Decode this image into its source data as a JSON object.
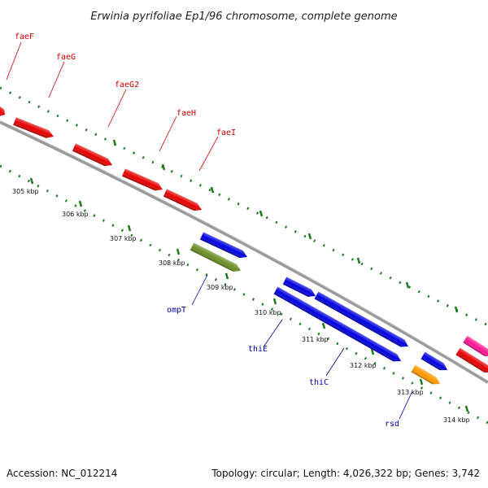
{
  "title": "Erwinia pyrifoliae Ep1/96 chromosome, complete genome",
  "footer": {
    "accession": "Accession: NC_012214",
    "summary": "Topology: circular; Length: 4,026,322 bp; Genes: 3,742"
  },
  "colors": {
    "backbone": "#8a8a8a",
    "tick": "#1f7a1f",
    "label_forward": "#cc0000",
    "label_reverse": "#0000aa"
  },
  "ticks": [
    {
      "label": "305 kbp",
      "kbp": 305
    },
    {
      "label": "306 kbp",
      "kbp": 306
    },
    {
      "label": "307 kbp",
      "kbp": 307
    },
    {
      "label": "308 kbp",
      "kbp": 308
    },
    {
      "label": "309 kbp",
      "kbp": 309
    },
    {
      "label": "310 kbp",
      "kbp": 310
    },
    {
      "label": "311 kbp",
      "kbp": 311
    },
    {
      "label": "312 kbp",
      "kbp": 312
    },
    {
      "label": "313 kbp",
      "kbp": 313
    },
    {
      "label": "314 kbp",
      "kbp": 314
    }
  ],
  "features": [
    {
      "name": "faeF",
      "label": "faeF",
      "color": "#e60000",
      "strand": "forward"
    },
    {
      "name": "faeG",
      "label": "faeG",
      "color": "#e60000",
      "strand": "forward"
    },
    {
      "name": "faeG2",
      "label": "faeG2",
      "color": "#e60000",
      "strand": "forward"
    },
    {
      "name": "faeH",
      "label": "faeH",
      "color": "#e60000",
      "strand": "forward"
    },
    {
      "name": "faeI",
      "label": "faeI",
      "color": "#e60000",
      "strand": "forward"
    },
    {
      "name": "ompT-like",
      "label": "",
      "color": "#0000e0",
      "strand": "forward"
    },
    {
      "name": "ompT",
      "label": "ompT",
      "color": "#6b8e23",
      "strand": "reverse"
    },
    {
      "name": "thiE",
      "label": "thiE",
      "color": "#0000e0",
      "strand": "reverse"
    },
    {
      "name": "thiC",
      "label": "thiC",
      "color": "#0000e0",
      "strand": "reverse"
    },
    {
      "name": "thiC2",
      "label": "",
      "color": "#0000e0",
      "strand": "reverse"
    },
    {
      "name": "rsd",
      "label": "rsd",
      "color": "#ff9900",
      "strand": "reverse"
    },
    {
      "name": "rsd2",
      "label": "",
      "color": "#0000e0",
      "strand": "reverse"
    },
    {
      "name": "pink",
      "label": "",
      "color": "#ff1493",
      "strand": "forward"
    },
    {
      "name": "red-end",
      "label": "",
      "color": "#e60000",
      "strand": "forward"
    }
  ]
}
